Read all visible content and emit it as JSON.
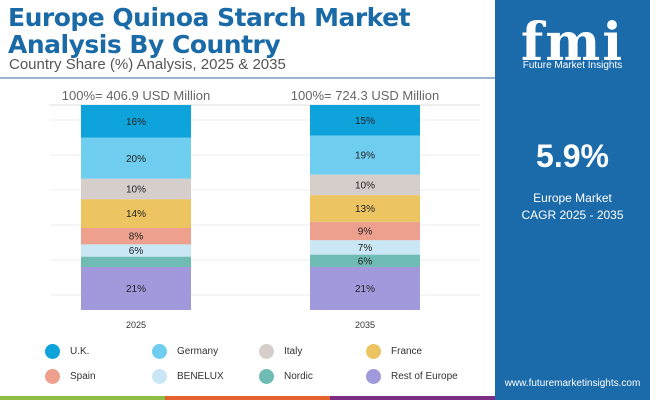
{
  "header": {
    "title_line1": "Europe Quinoa Starch Market",
    "title_line2": "Analysis By Country",
    "subtitle": "Country Share (%) Analysis, 2025 & 2035"
  },
  "panel": {
    "logo_text": "fmi",
    "logo_sub": "Future Market Insights",
    "cagr_value": "5.9%",
    "cagr_label1": "Europe Market",
    "cagr_label2": "CAGR 2025 - 2035",
    "url": "www.futuremarketinsights.com"
  },
  "chart_data": {
    "type": "bar",
    "stacked": true,
    "title": "Europe Quinoa Starch Market Analysis By Country",
    "categories": [
      "2025",
      "2035"
    ],
    "totals": [
      "100%= 406.9 USD Million",
      "100%= 724.3 USD Million"
    ],
    "ylim": [
      0,
      100
    ],
    "legend": "bottom",
    "series": [
      {
        "name": "U.K.",
        "color": "#0fa3dc",
        "values": [
          16,
          15
        ]
      },
      {
        "name": "Germany",
        "color": "#6fcdf0",
        "values": [
          20,
          19
        ]
      },
      {
        "name": "Italy",
        "color": "#d6cecb",
        "values": [
          10,
          10
        ]
      },
      {
        "name": "France",
        "color": "#ecc462",
        "values": [
          14,
          13
        ]
      },
      {
        "name": "Spain",
        "color": "#eda08e",
        "values": [
          8,
          9
        ]
      },
      {
        "name": "BENELUX",
        "color": "#c9e7f5",
        "values": [
          6,
          7
        ]
      },
      {
        "name": "Nordic",
        "color": "#6fbcb4",
        "values": [
          5,
          6
        ]
      },
      {
        "name": "Rest of Europe",
        "color": "#a09adc",
        "values": [
          21,
          21
        ]
      }
    ]
  }
}
